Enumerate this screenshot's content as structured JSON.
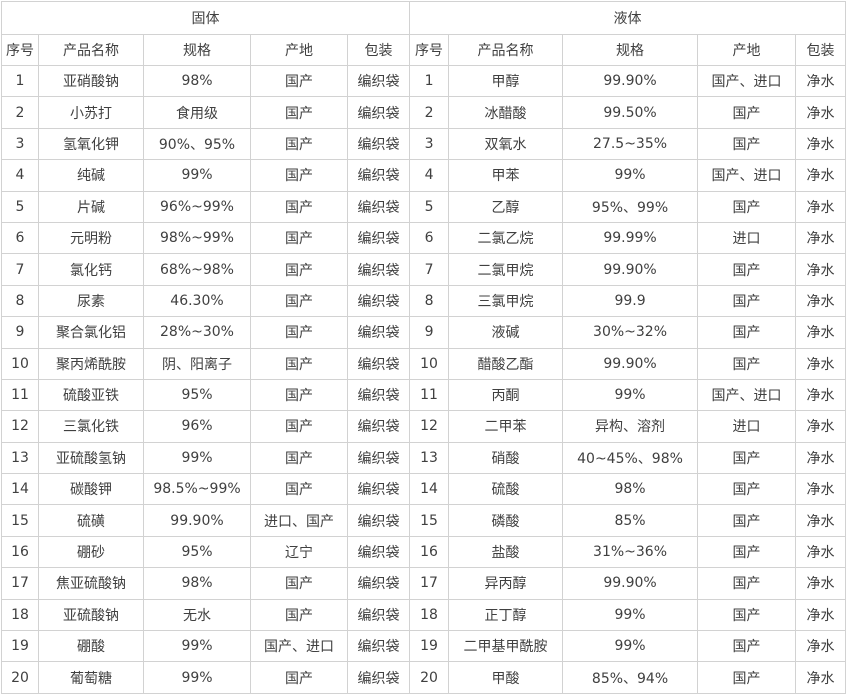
{
  "table": {
    "colors": {
      "border": "#d2d2d2",
      "text": "#404040",
      "background": "#ffffff"
    },
    "left": {
      "group_header": "固体",
      "columns": [
        "序号",
        "产品名称",
        "规格",
        "产地",
        "包装"
      ],
      "rows": [
        [
          "1",
          "亚硝酸钠",
          "98%",
          "国产",
          "编织袋"
        ],
        [
          "2",
          "小苏打",
          "食用级",
          "国产",
          "编织袋"
        ],
        [
          "3",
          "氢氧化钾",
          "90%、95%",
          "国产",
          "编织袋"
        ],
        [
          "4",
          "纯碱",
          "99%",
          "国产",
          "编织袋"
        ],
        [
          "5",
          "片碱",
          "96%~99%",
          "国产",
          "编织袋"
        ],
        [
          "6",
          "元明粉",
          "98%~99%",
          "国产",
          "编织袋"
        ],
        [
          "7",
          "氯化钙",
          "68%~98%",
          "国产",
          "编织袋"
        ],
        [
          "8",
          "尿素",
          "46.30%",
          "国产",
          "编织袋"
        ],
        [
          "9",
          "聚合氯化铝",
          "28%~30%",
          "国产",
          "编织袋"
        ],
        [
          "10",
          "聚丙烯酰胺",
          "阴、阳离子",
          "国产",
          "编织袋"
        ],
        [
          "11",
          "硫酸亚铁",
          "95%",
          "国产",
          "编织袋"
        ],
        [
          "12",
          "三氯化铁",
          "96%",
          "国产",
          "编织袋"
        ],
        [
          "13",
          "亚硫酸氢钠",
          "99%",
          "国产",
          "编织袋"
        ],
        [
          "14",
          "碳酸钾",
          "98.5%~99%",
          "国产",
          "编织袋"
        ],
        [
          "15",
          "硫磺",
          "99.90%",
          "进口、国产",
          "编织袋"
        ],
        [
          "16",
          "硼砂",
          "95%",
          "辽宁",
          "编织袋"
        ],
        [
          "17",
          "焦亚硫酸钠",
          "98%",
          "国产",
          "编织袋"
        ],
        [
          "18",
          "亚硫酸钠",
          "无水",
          "国产",
          "编织袋"
        ],
        [
          "19",
          "硼酸",
          "99%",
          "国产、进口",
          "编织袋"
        ],
        [
          "20",
          "葡萄糖",
          "99%",
          "国产",
          "编织袋"
        ]
      ]
    },
    "right": {
      "group_header": "液体",
      "columns": [
        "序号",
        "产品名称",
        "规格",
        "产地",
        "包装"
      ],
      "rows": [
        [
          "1",
          "甲醇",
          "99.90%",
          "国产、进口",
          "净水"
        ],
        [
          "2",
          "冰醋酸",
          "99.50%",
          "国产",
          "净水"
        ],
        [
          "3",
          "双氧水",
          "27.5~35%",
          "国产",
          "净水"
        ],
        [
          "4",
          "甲苯",
          "99%",
          "国产、进口",
          "净水"
        ],
        [
          "5",
          "乙醇",
          "95%、99%",
          "国产",
          "净水"
        ],
        [
          "6",
          "二氯乙烷",
          "99.99%",
          "进口",
          "净水"
        ],
        [
          "7",
          "二氯甲烷",
          "99.90%",
          "国产",
          "净水"
        ],
        [
          "8",
          "三氯甲烷",
          "99.9",
          "国产",
          "净水"
        ],
        [
          "9",
          "液碱",
          "30%~32%",
          "国产",
          "净水"
        ],
        [
          "10",
          "醋酸乙酯",
          "99.90%",
          "国产",
          "净水"
        ],
        [
          "11",
          "丙酮",
          "99%",
          "国产、进口",
          "净水"
        ],
        [
          "12",
          "二甲苯",
          "异构、溶剂",
          "进口",
          "净水"
        ],
        [
          "13",
          "硝酸",
          "40~45%、98%",
          "国产",
          "净水"
        ],
        [
          "14",
          "硫酸",
          "98%",
          "国产",
          "净水"
        ],
        [
          "15",
          "磷酸",
          "85%",
          "国产",
          "净水"
        ],
        [
          "16",
          "盐酸",
          "31%~36%",
          "国产",
          "净水"
        ],
        [
          "17",
          "异丙醇",
          "99.90%",
          "国产",
          "净水"
        ],
        [
          "18",
          "正丁醇",
          "99%",
          "国产",
          "净水"
        ],
        [
          "19",
          "二甲基甲酰胺",
          "99%",
          "国产",
          "净水"
        ],
        [
          "20",
          "甲酸",
          "85%、94%",
          "国产",
          "净水"
        ]
      ]
    }
  }
}
